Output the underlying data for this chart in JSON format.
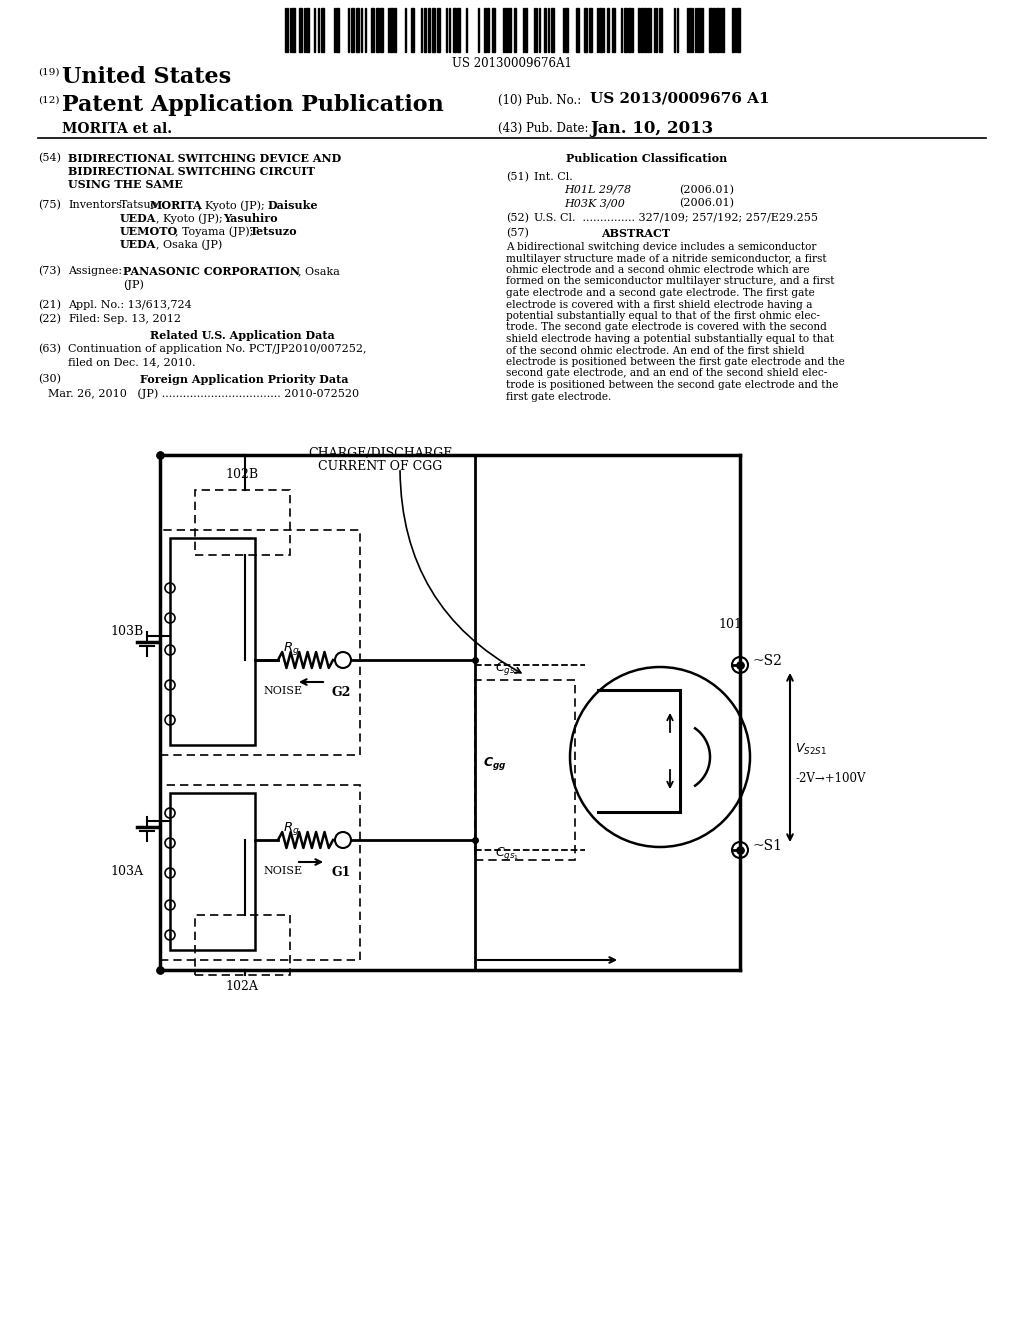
{
  "bg_color": "#ffffff",
  "barcode_text": "US 20130009676A1",
  "title_19_prefix": "(19)",
  "title_19_text": "United States",
  "title_12_prefix": "(12)",
  "title_12_text": "Patent Application Publication",
  "pub_no_prefix": "(10) Pub. No.:",
  "pub_no": "US 2013/0009676 A1",
  "author_line": "MORITA et al.",
  "pub_date_prefix": "(43) Pub. Date:",
  "pub_date": "Jan. 10, 2013",
  "field54_label": "(54)",
  "field54_line1": "BIDIRECTIONAL SWITCHING DEVICE AND",
  "field54_line2": "BIDIRECTIONAL SWITCHING CIRCUIT",
  "field54_line3": "USING THE SAME",
  "pub_class_title": "Publication Classification",
  "field51_label": "(51)",
  "field51_text": "Int. Cl.",
  "field51_h01l": "H01L 29/78",
  "field51_h01l_year": "(2006.01)",
  "field51_h03k": "H03K 3/00",
  "field51_h03k_year": "(2006.01)",
  "field52_label": "(52)",
  "field52_text": "U.S. Cl.  ............... 327/109; 257/192; 257/E29.255",
  "field57_label": "(57)",
  "field57_title": "ABSTRACT",
  "abstract_line1": "A bidirectional switching device includes a semiconductor",
  "abstract_line2": "multilayer structure made of a nitride semiconductor, a first",
  "abstract_line3": "ohmic electrode and a second ohmic electrode which are",
  "abstract_line4": "formed on the semiconductor multilayer structure, and a first",
  "abstract_line5": "gate electrode and a second gate electrode. The first gate",
  "abstract_line6": "electrode is covered with a first shield electrode having a",
  "abstract_line7": "potential substantially equal to that of the first ohmic elec-",
  "abstract_line8": "trode. The second gate electrode is covered with the second",
  "abstract_line9": "shield electrode having a potential substantially equal to that",
  "abstract_line10": "of the second ohmic electrode. An end of the first shield",
  "abstract_line11": "electrode is positioned between the first gate electrode and the",
  "abstract_line12": "second gate electrode, and an end of the second shield elec-",
  "abstract_line13": "trode is positioned between the second gate electrode and the",
  "abstract_line14": "first gate electrode.",
  "field75_label": "(75)",
  "field75_prefix": "Inventors:",
  "field75_line1": "Tatsuo MORITA, Kyoto (JP); Daisuke",
  "field75_line2": "UEDA, Kyoto (JP); Yasuhiro",
  "field75_line3": "UEMOTO, Toyama (JP); Tetsuzo",
  "field75_line4": "UEDA, Osaka (JP)",
  "field73_label": "(73)",
  "field73_prefix": "Assignee:",
  "field73_line1": "PANASONIC CORPORATION, Osaka",
  "field73_line2": "(JP)",
  "field21_label": "(21)",
  "field21_text": "Appl. No.: 13/613,724",
  "field22_label": "(22)",
  "field22_prefix": "Filed:",
  "field22_date": "Sep. 13, 2012",
  "related_title": "Related U.S. Application Data",
  "field63_label": "(63)",
  "field63_line1": "Continuation of application No. PCT/JP2010/007252,",
  "field63_line2": "filed on Dec. 14, 2010.",
  "field30_label": "(30)",
  "field30_title": "Foreign Application Priority Data",
  "field30_data": "Mar. 26, 2010   (JP) .................................. 2010-072520",
  "diag_label_102b": "102B",
  "diag_label_102a": "102A",
  "diag_label_103b": "103B",
  "diag_label_103a": "103A",
  "diag_label_101": "101",
  "diag_charge": "CHARGE/DISCHARGE",
  "diag_current": "CURRENT OF CGG",
  "diag_noise": "NOISE",
  "diag_g2": "G2",
  "diag_g1": "G1",
  "diag_s2": "~S2",
  "diag_s1": "~S1",
  "diag_vs2s1": "V",
  "diag_voltage": "-2V→+100V"
}
